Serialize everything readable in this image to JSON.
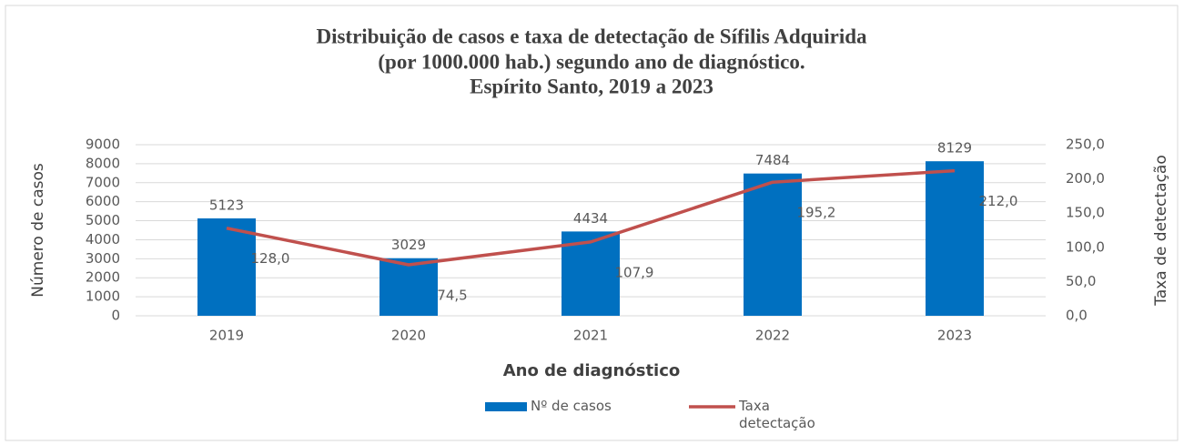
{
  "chart_data": {
    "type": "combo",
    "title": [
      "Distribuição de casos e taxa de detectação de Sífilis Adquirida",
      "(por 1000.000 hab.) segundo ano de diagnóstico.",
      "Espírito Santo, 2019 a 2023"
    ],
    "x_label": "Ano de diagnóstico",
    "y_label": "Número de casos",
    "y2_label": "Taxa de detectação",
    "categories": [
      "2019",
      "2020",
      "2021",
      "2022",
      "2023"
    ],
    "ylim": [
      0,
      9000
    ],
    "yticks": [
      0,
      1000,
      2000,
      3000,
      4000,
      5000,
      6000,
      7000,
      8000,
      9000
    ],
    "y2lim": [
      0,
      250
    ],
    "y2ticks": [
      {
        "value": 0,
        "label": "0,0"
      },
      {
        "value": 50,
        "label": "50,0"
      },
      {
        "value": 100,
        "label": "100,0"
      },
      {
        "value": 150,
        "label": "150,0"
      },
      {
        "value": 200,
        "label": "200,0"
      },
      {
        "value": 250,
        "label": "250,0"
      }
    ],
    "grid": true,
    "legend": "bottom",
    "series": [
      {
        "name": "Nº de casos",
        "type": "bar",
        "color": "#0070c0",
        "values": [
          5123,
          3029,
          4434,
          7484,
          8129
        ]
      },
      {
        "name": "Taxa detectação",
        "type": "line",
        "axis": "y2",
        "color": "#c0504d",
        "values": [
          128.0,
          74.5,
          107.9,
          195.2,
          212.0
        ],
        "value_labels": [
          "128,0",
          "74,5",
          "107,9",
          "195,2",
          "212,0"
        ]
      }
    ]
  }
}
